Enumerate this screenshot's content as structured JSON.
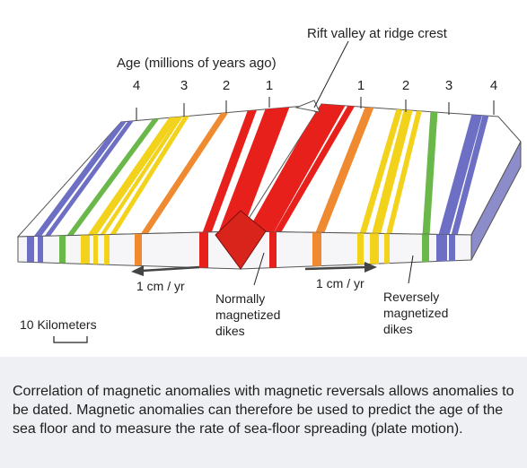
{
  "labels": {
    "rift": "Rift valley at ridge crest",
    "age_title": "Age (millions of years ago)",
    "left_ages": [
      "4",
      "3",
      "2",
      "1"
    ],
    "right_ages": [
      "1",
      "2",
      "3",
      "4"
    ],
    "left_rate": "1 cm / yr",
    "right_rate": "1 cm / yr",
    "normal_dikes": [
      "Normally",
      "magnetized",
      "dikes"
    ],
    "reverse_dikes": [
      "Reversely",
      "magnetized",
      "dikes"
    ],
    "scale": "10 Kilometers"
  },
  "caption": "Correlation of magnetic anomalies with magnetic reversals allows anomalies to be dated. Magnetic anomalies can therefore be used to predict the age of the sea floor and to measure the rate of sea-floor spreading (plate motion).",
  "colors": {
    "red": "#e8201c",
    "orange": "#f08a30",
    "yellow": "#f2d21a",
    "green": "#6bb84a",
    "blue": "#6d6fc4",
    "front_stripe": "#ffffff",
    "caption_bg": "#eef0f3"
  },
  "stripes_left": [
    {
      "color": "blue"
    },
    {
      "color": "blue"
    },
    {
      "color": "green"
    },
    {
      "color": "yellow"
    },
    {
      "color": "yellow"
    },
    {
      "color": "yellow"
    },
    {
      "color": "orange"
    },
    {
      "color": "red"
    },
    {
      "color": "red"
    }
  ],
  "stripes_right": [
    {
      "color": "red"
    },
    {
      "color": "red"
    },
    {
      "color": "orange"
    },
    {
      "color": "yellow"
    },
    {
      "color": "yellow"
    },
    {
      "color": "yellow"
    },
    {
      "color": "green"
    },
    {
      "color": "blue"
    },
    {
      "color": "blue"
    }
  ]
}
